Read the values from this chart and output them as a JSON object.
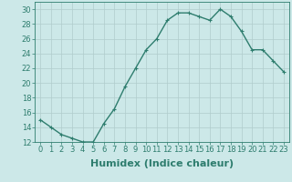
{
  "x": [
    0,
    1,
    2,
    3,
    4,
    5,
    6,
    7,
    8,
    9,
    10,
    11,
    12,
    13,
    14,
    15,
    16,
    17,
    18,
    19,
    20,
    21,
    22,
    23
  ],
  "y": [
    15,
    14,
    13,
    12.5,
    12,
    12,
    14.5,
    16.5,
    19.5,
    22,
    24.5,
    26,
    28.5,
    29.5,
    29.5,
    29,
    28.5,
    30,
    29,
    27,
    24.5,
    24.5,
    23,
    21.5
  ],
  "line_color": "#2e7d6e",
  "marker_color": "#2e7d6e",
  "bg_color": "#cce8e8",
  "grid_color": "#b0cccc",
  "xlabel": "Humidex (Indice chaleur)",
  "ylim": [
    12,
    31
  ],
  "xlim": [
    -0.5,
    23.5
  ],
  "yticks": [
    12,
    14,
    16,
    18,
    20,
    22,
    24,
    26,
    28,
    30
  ],
  "xtick_labels": [
    "0",
    "1",
    "2",
    "3",
    "4",
    "5",
    "6",
    "7",
    "8",
    "9",
    "10",
    "11",
    "12",
    "13",
    "14",
    "15",
    "16",
    "17",
    "18",
    "19",
    "20",
    "21",
    "22",
    "23"
  ],
  "tick_fontsize": 6,
  "xlabel_fontsize": 8,
  "line_width": 1.0,
  "marker_size": 2.5
}
